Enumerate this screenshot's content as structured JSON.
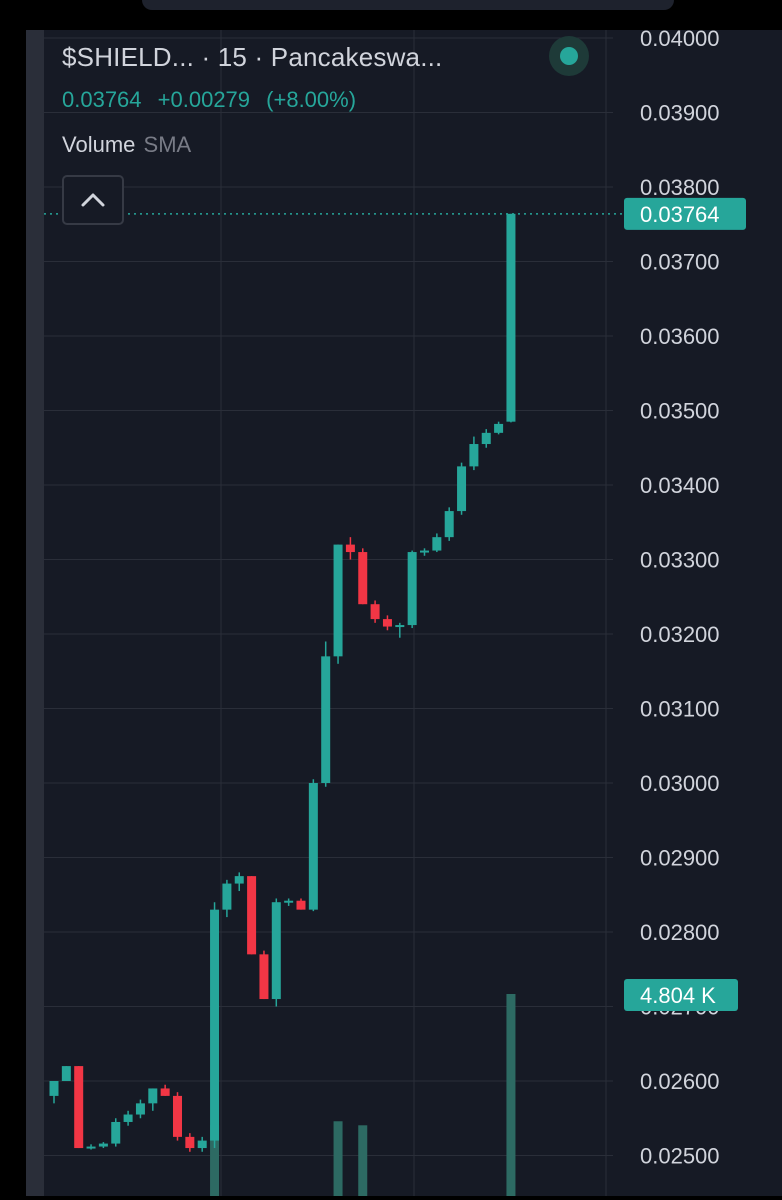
{
  "legend": {
    "title": "$SHIELD... · 15 · Pancakeswa...",
    "last": "0.03764",
    "change": "+0.00279",
    "change_pct": "(+8.00%)",
    "indicator": "Volume",
    "indicator_param": "SMA"
  },
  "icons": {
    "status": "status-dot-icon",
    "collapse": "chevron-up-icon"
  },
  "colors": {
    "background": "#161a25",
    "up": "#26a69a",
    "down": "#f23645",
    "grid": "#2a2e39",
    "text": "#d1d4dc"
  },
  "chart_data": {
    "type": "candlestick",
    "y_axis": {
      "range": [
        0.0249,
        0.0405
      ],
      "ticks": [
        "0.04000",
        "0.03900",
        "0.03800",
        "0.03700",
        "0.03600",
        "0.03500",
        "0.03400",
        "0.03300",
        "0.03200",
        "0.03100",
        "0.03000",
        "0.02900",
        "0.02800",
        "0.02700",
        "0.02600",
        "0.02500"
      ],
      "position": "right"
    },
    "grid": true,
    "last_price_label": "0.03764",
    "volume_label": "4.804 K",
    "candles": [
      {
        "o": 0.0258,
        "h": 0.026,
        "l": 0.0257,
        "c": 0.026
      },
      {
        "o": 0.026,
        "h": 0.0262,
        "l": 0.026,
        "c": 0.0262
      },
      {
        "o": 0.0262,
        "h": 0.0262,
        "l": 0.0251,
        "c": 0.0251
      },
      {
        "o": 0.0251,
        "h": 0.02515,
        "l": 0.02508,
        "c": 0.02512
      },
      {
        "o": 0.02512,
        "h": 0.02518,
        "l": 0.0251,
        "c": 0.02516
      },
      {
        "o": 0.02516,
        "h": 0.0255,
        "l": 0.02512,
        "c": 0.02545
      },
      {
        "o": 0.02545,
        "h": 0.0256,
        "l": 0.0254,
        "c": 0.02555
      },
      {
        "o": 0.02555,
        "h": 0.02575,
        "l": 0.0255,
        "c": 0.0257
      },
      {
        "o": 0.0257,
        "h": 0.0259,
        "l": 0.0256,
        "c": 0.0259
      },
      {
        "o": 0.0259,
        "h": 0.02595,
        "l": 0.0258,
        "c": 0.0258
      },
      {
        "o": 0.0258,
        "h": 0.02585,
        "l": 0.0252,
        "c": 0.02525
      },
      {
        "o": 0.02525,
        "h": 0.0253,
        "l": 0.02505,
        "c": 0.0251
      },
      {
        "o": 0.0251,
        "h": 0.02525,
        "l": 0.02505,
        "c": 0.0252
      },
      {
        "o": 0.0252,
        "h": 0.0284,
        "l": 0.0251,
        "c": 0.0283
      },
      {
        "o": 0.0283,
        "h": 0.0287,
        "l": 0.0282,
        "c": 0.02865
      },
      {
        "o": 0.02865,
        "h": 0.0288,
        "l": 0.02855,
        "c": 0.02875
      },
      {
        "o": 0.02875,
        "h": 0.02875,
        "l": 0.0277,
        "c": 0.0277
      },
      {
        "o": 0.0277,
        "h": 0.02775,
        "l": 0.0271,
        "c": 0.0271
      },
      {
        "o": 0.0271,
        "h": 0.02845,
        "l": 0.027,
        "c": 0.0284
      },
      {
        "o": 0.0284,
        "h": 0.02845,
        "l": 0.02835,
        "c": 0.02842
      },
      {
        "o": 0.02842,
        "h": 0.02845,
        "l": 0.0283,
        "c": 0.0283
      },
      {
        "o": 0.0283,
        "h": 0.03005,
        "l": 0.02828,
        "c": 0.03
      },
      {
        "o": 0.03,
        "h": 0.0319,
        "l": 0.02995,
        "c": 0.0317
      },
      {
        "o": 0.0317,
        "h": 0.0332,
        "l": 0.0316,
        "c": 0.0332
      },
      {
        "o": 0.0332,
        "h": 0.0333,
        "l": 0.033,
        "c": 0.0331
      },
      {
        "o": 0.0331,
        "h": 0.03315,
        "l": 0.0324,
        "c": 0.0324
      },
      {
        "o": 0.0324,
        "h": 0.03245,
        "l": 0.03215,
        "c": 0.0322
      },
      {
        "o": 0.0322,
        "h": 0.03225,
        "l": 0.03205,
        "c": 0.0321
      },
      {
        "o": 0.0321,
        "h": 0.03215,
        "l": 0.03195,
        "c": 0.03212
      },
      {
        "o": 0.03212,
        "h": 0.03312,
        "l": 0.03208,
        "c": 0.0331
      },
      {
        "o": 0.0331,
        "h": 0.03315,
        "l": 0.03305,
        "c": 0.03312
      },
      {
        "o": 0.03312,
        "h": 0.03335,
        "l": 0.0331,
        "c": 0.0333
      },
      {
        "o": 0.0333,
        "h": 0.0337,
        "l": 0.03325,
        "c": 0.03365
      },
      {
        "o": 0.03365,
        "h": 0.0343,
        "l": 0.0336,
        "c": 0.03425
      },
      {
        "o": 0.03425,
        "h": 0.03465,
        "l": 0.0342,
        "c": 0.03455
      },
      {
        "o": 0.03455,
        "h": 0.03475,
        "l": 0.0345,
        "c": 0.0347
      },
      {
        "o": 0.0347,
        "h": 0.03485,
        "l": 0.03468,
        "c": 0.03482
      },
      {
        "o": 0.03485,
        "h": 0.03764,
        "l": 0.03484,
        "c": 0.03764
      }
    ],
    "volume": [
      0,
      0,
      0,
      0,
      0,
      0,
      0,
      0,
      0,
      0,
      0,
      0,
      0,
      0.35,
      0,
      0,
      0,
      0,
      0,
      0,
      0,
      0,
      0,
      0.37,
      0,
      0.35,
      0,
      0,
      0,
      0,
      0,
      0,
      0,
      0,
      0,
      0,
      0,
      1.0
    ]
  }
}
